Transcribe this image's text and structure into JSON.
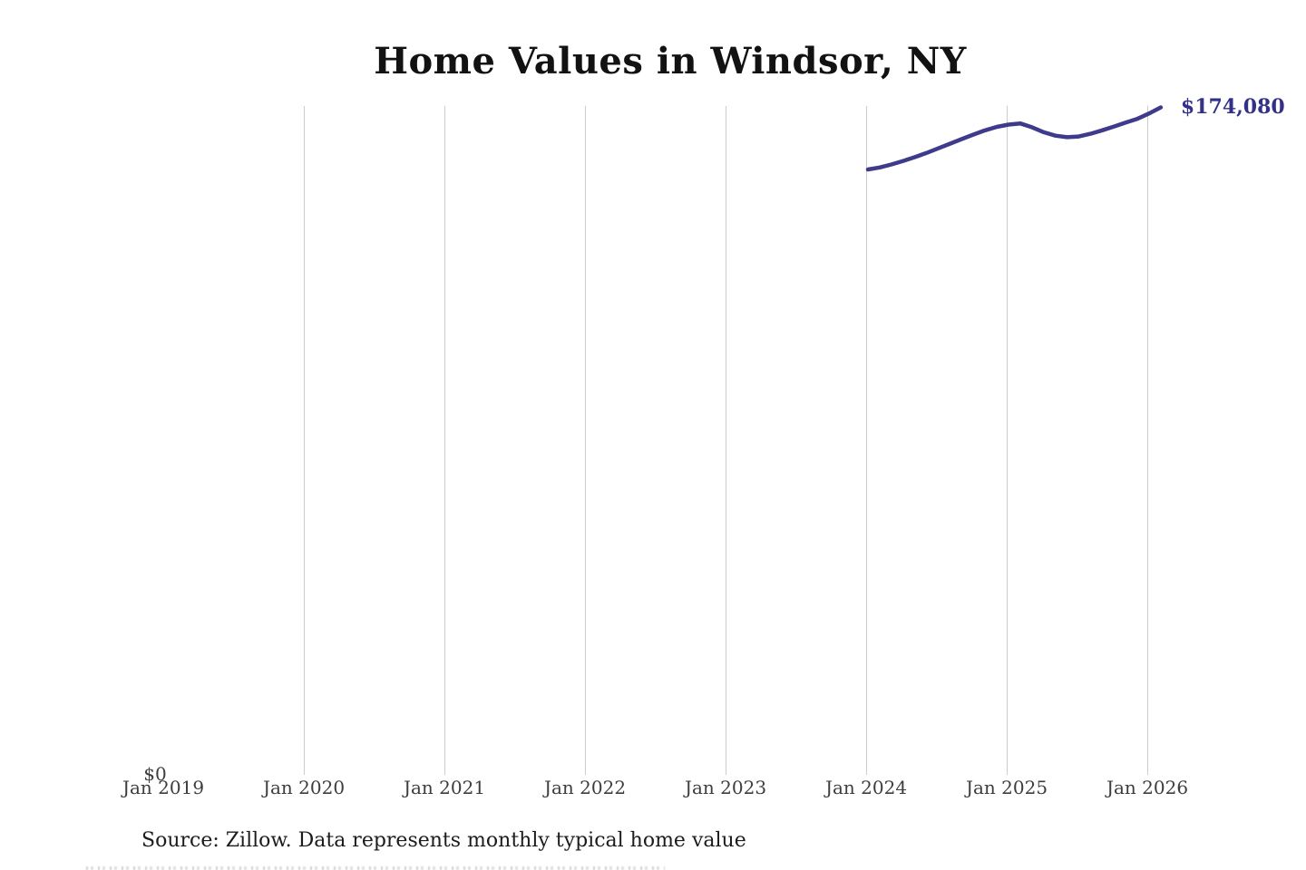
{
  "title": "Home Values in Windsor, NY",
  "end_value_label": "$174,080",
  "source_note": "Source: Zillow. Data represents monthly typical home value",
  "y_axis": {
    "zero_label": "$0"
  },
  "x_axis": {
    "ticks": [
      "Jan 2019",
      "Jan 2020",
      "Jan 2021",
      "Jan 2022",
      "Jan 2023",
      "Jan 2024",
      "Jan 2025",
      "Jan 2026"
    ]
  },
  "colors": {
    "line": "#3e3a8c",
    "end_label": "#333089",
    "grid": "#cccccc",
    "axis_text": "#3d3d3d",
    "title_text": "#121212",
    "source_text": "#1c1c1c",
    "background": "#ffffff"
  },
  "chart_data": {
    "type": "line",
    "title": "Home Values in Windsor, NY",
    "series_name": "Monthly typical home value",
    "x": [
      "Jan 2024",
      "Feb 2024",
      "Mar 2024",
      "Apr 2024",
      "May 2024",
      "Jun 2024",
      "Jul 2024",
      "Aug 2024",
      "Sep 2024",
      "Oct 2024",
      "Nov 2024",
      "Dec 2024",
      "Jan 2025",
      "Feb 2025",
      "Mar 2025",
      "Apr 2025",
      "May 2025",
      "Jun 2025",
      "Jul 2025",
      "Aug 2025",
      "Sep 2025",
      "Oct 2025",
      "Nov 2025",
      "Dec 2025",
      "Jan 2026",
      "Feb 2026"
    ],
    "values": [
      157900,
      158400,
      159200,
      160100,
      161100,
      162200,
      163400,
      164600,
      165800,
      167000,
      168100,
      169000,
      169600,
      169900,
      168900,
      167600,
      166700,
      166300,
      166500,
      167200,
      168100,
      169100,
      170100,
      171100,
      172500,
      174080
    ],
    "end_label": "$174,080",
    "xlabel": "",
    "ylabel": "",
    "ylim": [
      0,
      174500
    ],
    "x_ticks_shown": [
      "Jan 2019",
      "Jan 2020",
      "Jan 2021",
      "Jan 2022",
      "Jan 2023",
      "Jan 2024",
      "Jan 2025",
      "Jan 2026"
    ],
    "grid": "vertical-only",
    "legend": "none",
    "annotations": [
      "$0 baseline label at origin",
      "end-of-line value label $174,080"
    ]
  }
}
